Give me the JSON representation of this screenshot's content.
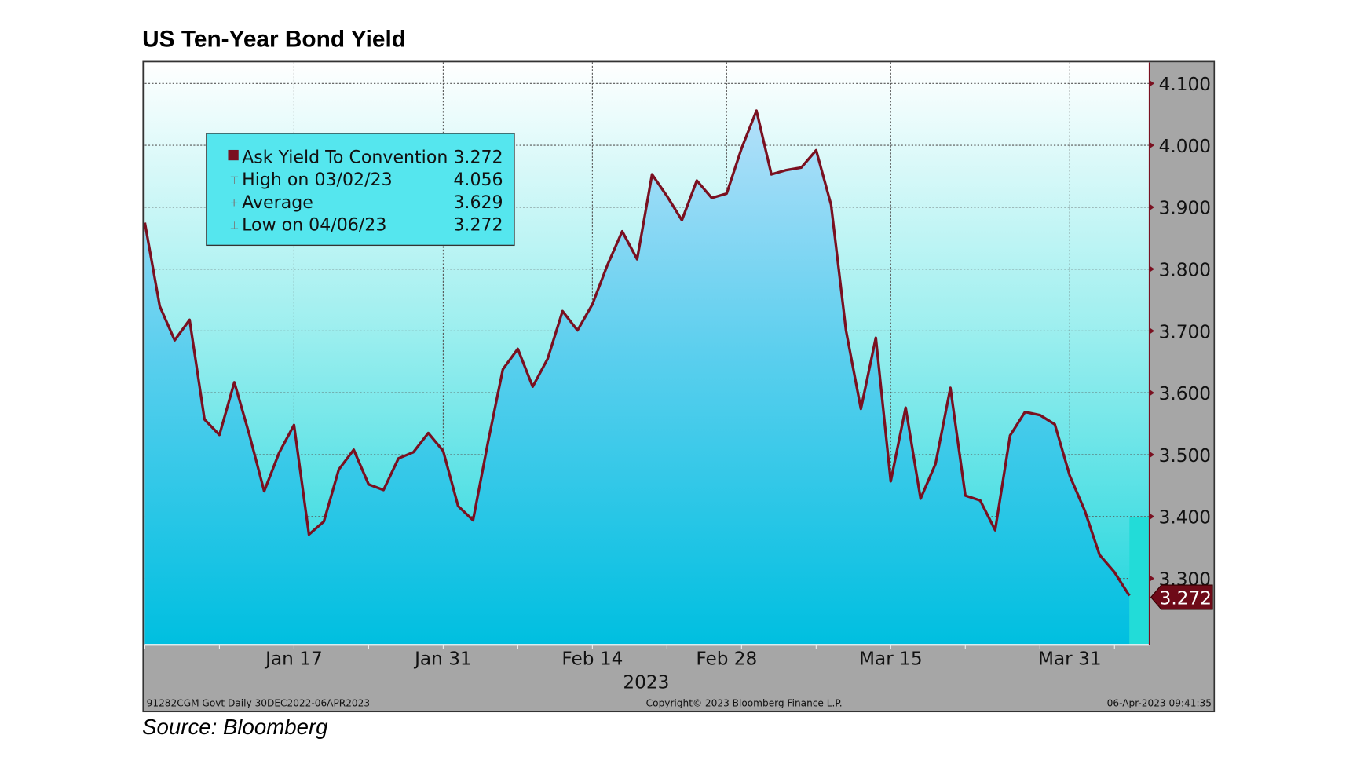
{
  "title": "US Ten-Year Bond Yield",
  "source": "Source:  Bloomberg",
  "chart_data": {
    "type": "area",
    "title": "US Ten-Year Bond Yield",
    "xlabel": "2023",
    "ylabel": "",
    "ylim": [
      3.194,
      4.134
    ],
    "y_ticks": [
      "4.100",
      "4.000",
      "3.900",
      "3.800",
      "3.700",
      "3.600",
      "3.500",
      "3.400",
      "3.300"
    ],
    "y_tick_values": [
      4.1,
      4.0,
      3.9,
      3.8,
      3.7,
      3.6,
      3.5,
      3.4,
      3.3
    ],
    "x_ticks": [
      {
        "label": "Jan 17",
        "index": 10
      },
      {
        "label": "Jan 31",
        "index": 20
      },
      {
        "label": "Feb 14",
        "index": 30
      },
      {
        "label": "Feb 28",
        "index": 39
      },
      {
        "label": "Mar 15",
        "index": 50
      },
      {
        "label": "Mar 31",
        "index": 62
      }
    ],
    "grid": true,
    "series": [
      {
        "name": "Ask Yield To Convention",
        "color": "#7a1020",
        "x": [
          "12/30",
          "01/03",
          "01/04",
          "01/05",
          "01/06",
          "01/09",
          "01/10",
          "01/11",
          "01/12",
          "01/13",
          "01/17",
          "01/18",
          "01/19",
          "01/20",
          "01/23",
          "01/24",
          "01/25",
          "01/26",
          "01/27",
          "01/30",
          "01/31",
          "02/01",
          "02/02",
          "02/03",
          "02/06",
          "02/07",
          "02/08",
          "02/09",
          "02/10",
          "02/13",
          "02/14",
          "02/15",
          "02/16",
          "02/17",
          "02/21",
          "02/22",
          "02/23",
          "02/24",
          "02/27",
          "02/28",
          "03/01",
          "03/02",
          "03/03",
          "03/06",
          "03/07",
          "03/08",
          "03/09",
          "03/10",
          "03/13",
          "03/14",
          "03/15",
          "03/16",
          "03/17",
          "03/20",
          "03/21",
          "03/22",
          "03/23",
          "03/24",
          "03/27",
          "03/28",
          "03/29",
          "03/30",
          "03/31",
          "04/03",
          "04/04",
          "04/05",
          "04/06"
        ],
        "values": [
          3.875,
          3.74,
          3.685,
          3.718,
          3.557,
          3.532,
          3.617,
          3.533,
          3.441,
          3.503,
          3.548,
          3.371,
          3.392,
          3.476,
          3.508,
          3.452,
          3.443,
          3.494,
          3.504,
          3.535,
          3.506,
          3.417,
          3.394,
          3.52,
          3.638,
          3.671,
          3.61,
          3.655,
          3.732,
          3.701,
          3.743,
          3.806,
          3.861,
          3.816,
          3.953,
          3.918,
          3.879,
          3.943,
          3.915,
          3.922,
          3.995,
          4.056,
          3.953,
          3.96,
          3.964,
          3.992,
          3.904,
          3.701,
          3.574,
          3.689,
          3.457,
          3.576,
          3.429,
          3.485,
          3.608,
          3.434,
          3.426,
          3.378,
          3.531,
          3.569,
          3.564,
          3.549,
          3.466,
          3.41,
          3.338,
          3.31,
          3.272
        ]
      }
    ],
    "legend": {
      "placement": "top-left",
      "rows": [
        {
          "label": "Ask Yield To Convention",
          "value": "3.272"
        },
        {
          "label": "High on 03/02/23",
          "value": "4.056"
        },
        {
          "label": "Average",
          "value": "3.629"
        },
        {
          "label": "Low on 04/06/23",
          "value": "3.272"
        }
      ]
    },
    "last_value_label": "3.272",
    "footer": {
      "left": "91282CGM Govt  Daily 30DEC2022-06APR2023",
      "center": "Copyright© 2023 Bloomberg Finance L.P.",
      "right": "06-Apr-2023 09:41:35"
    }
  }
}
